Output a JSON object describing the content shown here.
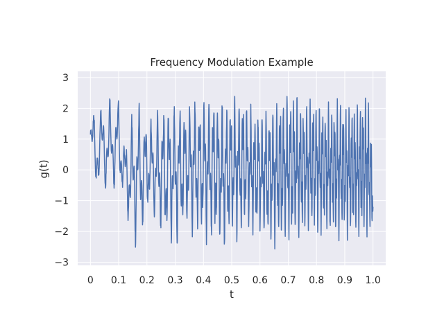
{
  "chart_data": {
    "type": "line",
    "title": "Frequency Modulation Example",
    "xlabel": "t",
    "ylabel": "g(t)",
    "xlim": [
      -0.045,
      1.045
    ],
    "ylim": [
      -3.1,
      3.2
    ],
    "xticks": [
      0,
      0.1,
      0.2,
      0.3,
      0.4,
      0.5,
      0.6,
      0.7,
      0.8,
      0.9,
      1.0
    ],
    "xtick_labels": [
      "0",
      "0.1",
      "0.2",
      "0.3",
      "0.4",
      "0.5",
      "0.6",
      "0.7",
      "0.8",
      "0.9",
      "1.0"
    ],
    "yticks": [
      -3,
      -2,
      -1,
      0,
      1,
      2,
      3
    ],
    "ytick_labels": [
      "−3",
      "−2",
      "−1",
      "0",
      "1",
      "2",
      "3"
    ],
    "grid": true,
    "style": "seaborn-darkgrid",
    "series": [
      {
        "color": "#4c72b0",
        "x_range": [
          0,
          1
        ],
        "peaks": [
          [
            0.03,
            2.2
          ],
          [
            0.05,
            2.35
          ],
          [
            0.1,
            2.5
          ],
          [
            0.12,
            1.0
          ],
          [
            0.16,
            2.4
          ],
          [
            0.18,
            2.2
          ],
          [
            0.2,
            1.9
          ],
          [
            0.23,
            1.7
          ],
          [
            0.245,
            2.3
          ],
          [
            0.28,
            2.5
          ],
          [
            0.32,
            2.3
          ],
          [
            0.36,
            2.5
          ],
          [
            0.4,
            2.6
          ],
          [
            0.44,
            2.8
          ],
          [
            0.46,
            2.4
          ],
          [
            0.49,
            2.6
          ],
          [
            0.54,
            2.6
          ],
          [
            0.58,
            2.1
          ],
          [
            0.63,
            2.3
          ],
          [
            0.68,
            2.6
          ],
          [
            0.71,
            2.9
          ],
          [
            0.75,
            2.3
          ],
          [
            0.79,
            2.6
          ],
          [
            0.84,
            2.3
          ],
          [
            0.89,
            2.5
          ],
          [
            0.92,
            2.3
          ],
          [
            0.95,
            2.3
          ],
          [
            0.98,
            2.8
          ],
          [
            1.0,
            1.0
          ]
        ],
        "troughs": [
          [
            0.0,
            -0.9
          ],
          [
            0.02,
            -0.8
          ],
          [
            0.08,
            -0.9
          ],
          [
            0.11,
            -0.7
          ],
          [
            0.13,
            -1.7
          ],
          [
            0.15,
            -2.7
          ],
          [
            0.19,
            -2.1
          ],
          [
            0.21,
            -1.4
          ],
          [
            0.25,
            -2.3
          ],
          [
            0.27,
            -2.6
          ],
          [
            0.3,
            -2.7
          ],
          [
            0.33,
            -2.1
          ],
          [
            0.37,
            -2.3
          ],
          [
            0.41,
            -2.5
          ],
          [
            0.45,
            -2.6
          ],
          [
            0.47,
            -2.9
          ],
          [
            0.5,
            -2.4
          ],
          [
            0.53,
            -2.4
          ],
          [
            0.56,
            -2.2
          ],
          [
            0.6,
            -2.4
          ],
          [
            0.65,
            -2.7
          ],
          [
            0.69,
            -2.7
          ],
          [
            0.72,
            -2.6
          ],
          [
            0.76,
            -2.2
          ],
          [
            0.8,
            -2.3
          ],
          [
            0.84,
            -2.3
          ],
          [
            0.87,
            -2.4
          ],
          [
            0.91,
            -2.4
          ],
          [
            0.95,
            -2.3
          ],
          [
            0.99,
            -2.3
          ]
        ]
      }
    ]
  }
}
